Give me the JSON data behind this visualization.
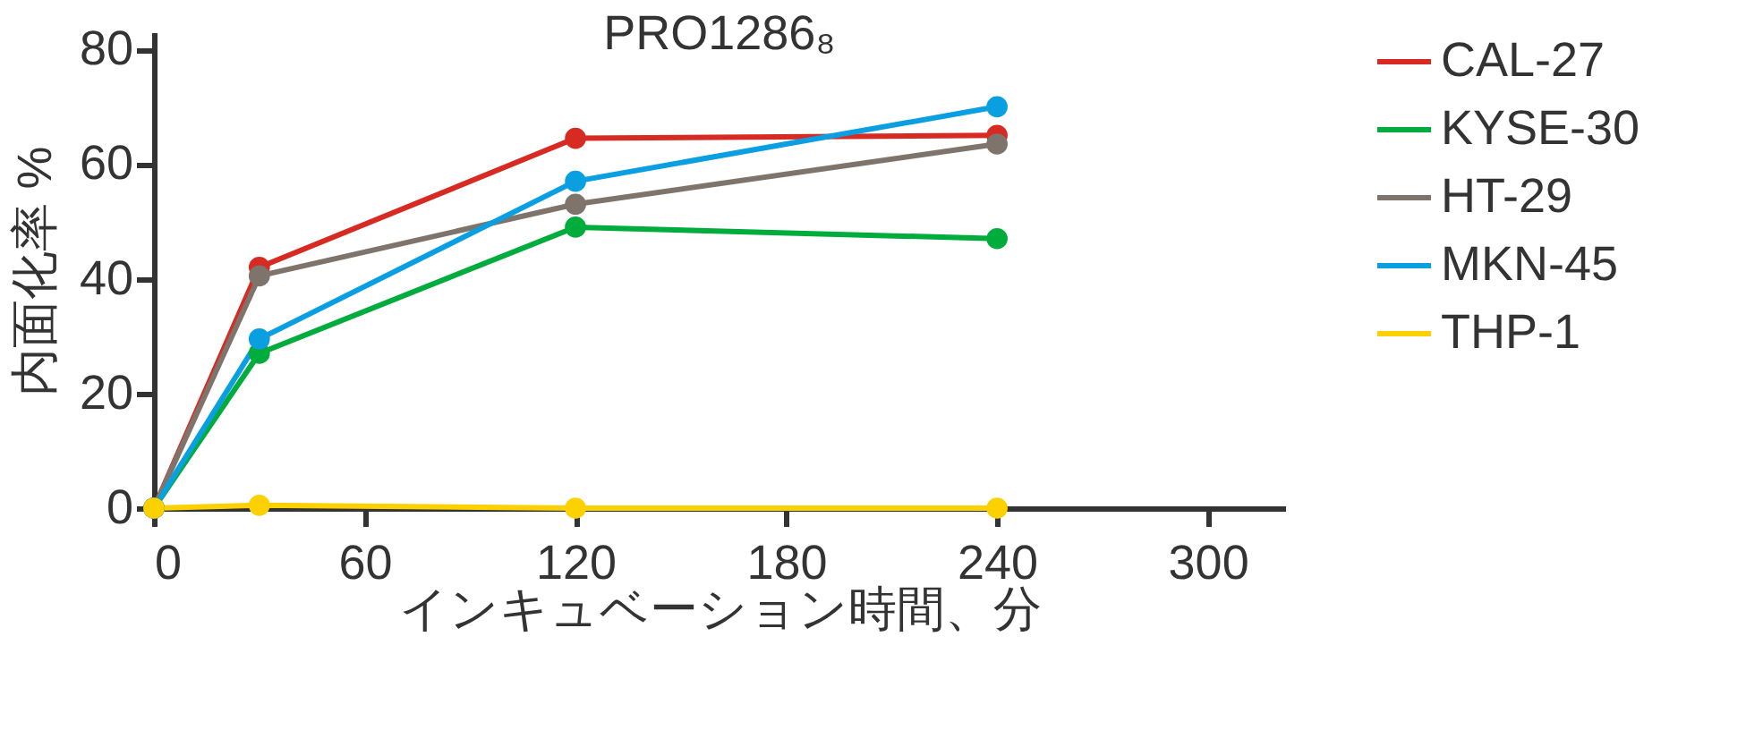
{
  "chart_data": {
    "type": "line",
    "title": "PRO1286₈",
    "xlabel": "インキュベーション時間、分",
    "ylabel": "内面化率 %",
    "x": [
      0,
      30,
      120,
      240
    ],
    "series": [
      {
        "name": "CAL-27",
        "color": "#d62a22",
        "values": [
          0,
          42,
          64.5,
          65
        ]
      },
      {
        "name": "KYSE-30",
        "color": "#00ac3c",
        "values": [
          0,
          27,
          49,
          47
        ]
      },
      {
        "name": "HT-29",
        "color": "#7f746c",
        "values": [
          0,
          40.5,
          53,
          63.5
        ]
      },
      {
        "name": "MKN-45",
        "color": "#0a9fe0",
        "values": [
          0,
          29.5,
          57,
          70
        ]
      },
      {
        "name": "THP-1",
        "color": "#fdd000",
        "values": [
          0,
          0.5,
          0,
          0
        ]
      }
    ],
    "xlim": [
      0,
      322
    ],
    "xticks": [
      0,
      60,
      120,
      180,
      240,
      300
    ],
    "ylim": [
      0,
      83
    ],
    "yticks": [
      0,
      20,
      40,
      60,
      80
    ],
    "grid": false,
    "legend": "top right",
    "marker": "circle",
    "line_style": "solid"
  }
}
